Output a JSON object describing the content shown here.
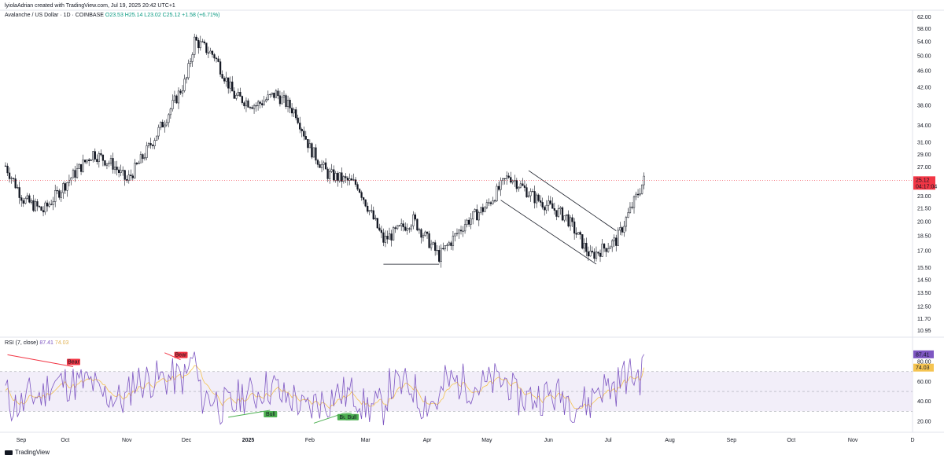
{
  "header": {
    "caption": "lyiolaAdrian created with TradingView.com, Jul 19, 2025 20:42 UTC+1",
    "pair": "Avalanche / US Dollar · 1D · COINBASE",
    "ohlc": "O23.53 H25.14 L23.02 C25.12 +1.58 (+6.71%)"
  },
  "rsi_legend": {
    "name": "RSI (7, close)",
    "value": "87.41",
    "ma": "74.03"
  },
  "brand": {
    "label": "TradingView"
  },
  "colors": {
    "up": "#089981",
    "down": "#f23645",
    "candle": "#131722",
    "rsi": "#7e57c2",
    "rsi_ma": "#f5c451",
    "band": "#ede7f6",
    "price_badge": "#f23645"
  },
  "chart_data": [
    {
      "type": "candlestick",
      "title": "Avalanche / US Dollar · 1D · COINBASE",
      "x_axis": {
        "labels": [
          "Sep",
          "Oct",
          "Nov",
          "Dec",
          "2025",
          "Feb",
          "Mar",
          "Apr",
          "May",
          "Jun",
          "Jul",
          "Aug",
          "Sep",
          "Oct",
          "Nov",
          "D"
        ]
      },
      "y_axis": {
        "scale": "log",
        "range": [
          10.6,
          64.0
        ],
        "labels": [
          "62.00",
          "58.00",
          "54.00",
          "50.00",
          "46.00",
          "42.00",
          "38.00",
          "34.00",
          "31.00",
          "29.00",
          "27.00",
          "23.00",
          "21.50",
          "20.00",
          "18.50",
          "17.00",
          "15.50",
          "14.50",
          "13.50",
          "12.50",
          "11.70",
          "10.95"
        ]
      },
      "last_price": {
        "value": "25.12",
        "countdown": "04:17:04"
      },
      "close_path_approx": [
        {
          "t": "2024-09-01",
          "v": 27.2
        },
        {
          "t": "2024-09-10",
          "v": 22.6
        },
        {
          "t": "2024-09-20",
          "v": 21.2
        },
        {
          "t": "2024-10-01",
          "v": 24.6
        },
        {
          "t": "2024-10-15",
          "v": 29.2
        },
        {
          "t": "2024-10-25",
          "v": 27.4
        },
        {
          "t": "2024-11-01",
          "v": 25.0
        },
        {
          "t": "2024-11-10",
          "v": 29.0
        },
        {
          "t": "2024-11-20",
          "v": 35.0
        },
        {
          "t": "2024-12-01",
          "v": 44.0
        },
        {
          "t": "2024-12-05",
          "v": 54.5
        },
        {
          "t": "2024-12-15",
          "v": 50.0
        },
        {
          "t": "2024-12-25",
          "v": 40.0
        },
        {
          "t": "2025-01-05",
          "v": 38.0
        },
        {
          "t": "2025-01-15",
          "v": 40.5
        },
        {
          "t": "2025-01-25",
          "v": 36.5
        },
        {
          "t": "2025-02-01",
          "v": 30.0
        },
        {
          "t": "2025-02-10",
          "v": 26.0
        },
        {
          "t": "2025-02-25",
          "v": 24.5
        },
        {
          "t": "2025-03-10",
          "v": 18.0
        },
        {
          "t": "2025-03-25",
          "v": 20.2
        },
        {
          "t": "2025-04-07",
          "v": 16.5
        },
        {
          "t": "2025-04-20",
          "v": 19.8
        },
        {
          "t": "2025-05-01",
          "v": 21.8
        },
        {
          "t": "2025-05-12",
          "v": 25.8
        },
        {
          "t": "2025-05-25",
          "v": 22.8
        },
        {
          "t": "2025-06-10",
          "v": 20.5
        },
        {
          "t": "2025-06-22",
          "v": 16.5
        },
        {
          "t": "2025-07-05",
          "v": 18.0
        },
        {
          "t": "2025-07-19",
          "v": 25.12
        }
      ],
      "annotations": [
        {
          "type": "horizontal-support",
          "from": "2025-03-10",
          "to": "2025-04-07",
          "level": 15.8
        },
        {
          "type": "descending-channel",
          "upper": [
            {
              "t": "2025-05-22",
              "v": 26.5
            },
            {
              "t": "2025-07-05",
              "v": 19.0
            }
          ],
          "lower": [
            {
              "t": "2025-05-08",
              "v": 22.5
            },
            {
              "t": "2025-06-25",
              "v": 15.8
            }
          ]
        },
        {
          "type": "dotted-price-line",
          "level": 25.12
        }
      ]
    },
    {
      "type": "line",
      "title": "RSI (7, close)",
      "y_axis": {
        "range": [
          12,
          96
        ],
        "labels": [
          "87.41",
          "80.00",
          "74.03",
          "60.00",
          "40.00",
          "20.00"
        ]
      },
      "bands": {
        "upper": 70,
        "middle": 50,
        "lower": 30
      },
      "series": [
        {
          "name": "RSI (7, close)",
          "last": 87.41
        },
        {
          "name": "",
          "last": 74.03
        }
      ],
      "divergences": [
        {
          "label": "Bear",
          "from": {
            "t": "2024-09-02",
            "v": 87
          },
          "to": {
            "t": "2024-10-05",
            "v": 75
          }
        },
        {
          "label": "Bear",
          "from": {
            "t": "2024-11-20",
            "v": 89
          },
          "to": {
            "t": "2024-11-28",
            "v": 82
          }
        },
        {
          "label": "Bull",
          "from": {
            "t": "2024-12-22",
            "v": 24
          },
          "to": {
            "t": "2025-01-12",
            "v": 31
          }
        },
        {
          "label": "Bull",
          "from": {
            "t": "2025-02-03",
            "v": 18
          },
          "to": {
            "t": "2025-02-18",
            "v": 28
          }
        },
        {
          "label": "Bull",
          "from": {
            "t": "2025-02-18",
            "v": 28
          },
          "to": {
            "t": "2025-02-22",
            "v": 28
          }
        }
      ]
    }
  ]
}
